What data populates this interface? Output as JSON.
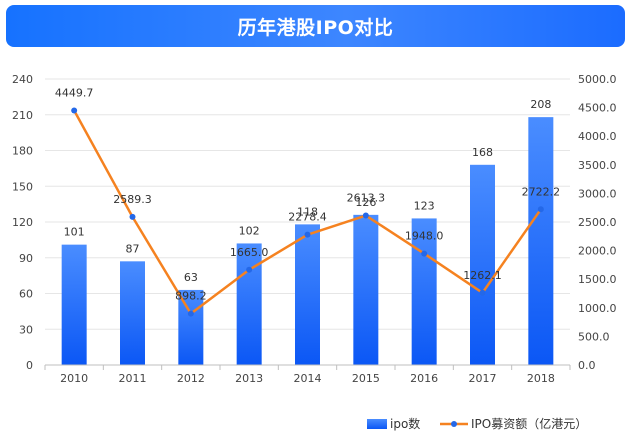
{
  "chart_data": {
    "type": "bar",
    "title": "历年港股IPO对比",
    "categories": [
      "2010",
      "2011",
      "2012",
      "2013",
      "2014",
      "2015",
      "2016",
      "2017",
      "2018"
    ],
    "series": [
      {
        "name": "ipo数",
        "type": "bar",
        "axis": "left",
        "values": [
          101,
          87,
          63,
          102,
          118,
          126,
          123,
          168,
          208
        ],
        "labels": [
          "101",
          "87",
          "63",
          "102",
          "118",
          "126",
          "123",
          "168",
          "208"
        ]
      },
      {
        "name": "IPO募资额（亿港元）",
        "type": "line",
        "axis": "right",
        "values": [
          4449.7,
          2589.3,
          898.2,
          1665.0,
          2278.4,
          2613.3,
          1948.0,
          1262.1,
          2722.2
        ],
        "labels": [
          "4449.7",
          "2589.3",
          "898.2",
          "1665.0",
          "2278.4",
          "2613.3",
          "1948.0",
          "1262.1",
          "2722.2"
        ]
      }
    ],
    "ylim_left": [
      0,
      240
    ],
    "yticks_left": [
      "0",
      "30",
      "60",
      "90",
      "120",
      "150",
      "180",
      "210",
      "240"
    ],
    "ylim_right": [
      0,
      5000
    ],
    "yticks_right": [
      "0.0",
      "500.0",
      "1000.0",
      "1500.0",
      "2000.0",
      "2500.0",
      "3000.0",
      "3500.0",
      "4000.0",
      "4500.0",
      "5000.0"
    ],
    "grid": true,
    "legend_position": "bottom-right",
    "colors": {
      "bar_top": "#4a8dff",
      "bar_bottom": "#0b57f5",
      "line": "#f58220",
      "marker": "#2468e8",
      "title_bg": "#1672ff"
    }
  }
}
